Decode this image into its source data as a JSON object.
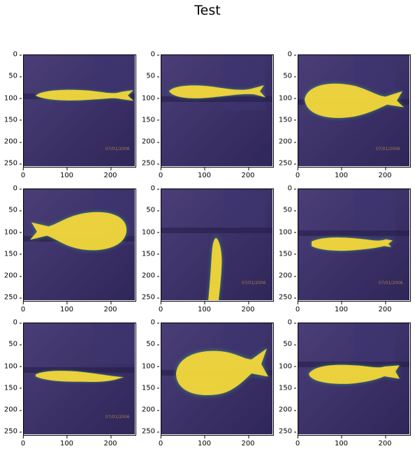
{
  "figure": {
    "title": "Test",
    "y_tick_labels": [
      "0",
      "50",
      "100",
      "150",
      "200",
      "250"
    ],
    "x_tick_labels": [
      "0",
      "100",
      "200"
    ]
  },
  "panels": [
    {
      "id": 1,
      "stamp": "07/01/2006"
    },
    {
      "id": 2,
      "stamp": ""
    },
    {
      "id": 3,
      "stamp": "07/01/2006"
    },
    {
      "id": 4,
      "stamp": ""
    },
    {
      "id": 5,
      "stamp": "07/01/2006"
    },
    {
      "id": 6,
      "stamp": "07/01/2006"
    },
    {
      "id": 7,
      "stamp": "07/01/2006"
    },
    {
      "id": 8,
      "stamp": ""
    },
    {
      "id": 9,
      "stamp": ""
    }
  ],
  "colors": {
    "background_dark": "#2f2659",
    "background_mid": "#4b3e78",
    "highlight": "#f3d53a",
    "halo": "#34a86f"
  }
}
